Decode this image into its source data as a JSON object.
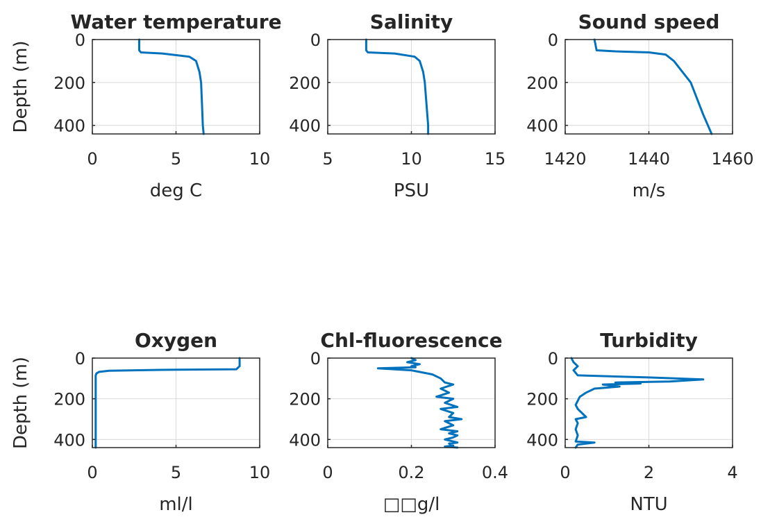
{
  "chart_data": [
    {
      "type": "line",
      "title": "Water temperature",
      "xlabel": "deg C",
      "ylabel": "Depth (m)",
      "xlim": [
        0,
        10
      ],
      "ylim": [
        0,
        440
      ],
      "y_reversed": true,
      "grid": true,
      "xticks": [
        "0",
        "5",
        "10"
      ],
      "yticks": [
        "0",
        "200",
        "400"
      ],
      "series": [
        {
          "x": [
            2.8,
            2.8,
            2.9,
            4.2,
            5.8,
            6.2,
            6.4,
            6.5,
            6.55,
            6.6,
            6.65
          ],
          "y": [
            0,
            50,
            60,
            65,
            80,
            100,
            150,
            200,
            300,
            400,
            440
          ]
        }
      ]
    },
    {
      "type": "line",
      "title": "Salinity",
      "xlabel": "PSU",
      "ylabel": "",
      "xlim": [
        5,
        15
      ],
      "ylim": [
        0,
        440
      ],
      "y_reversed": true,
      "grid": true,
      "xticks": [
        "5",
        "10",
        "15"
      ],
      "yticks": [
        "0",
        "200",
        "400"
      ],
      "series": [
        {
          "x": [
            7.3,
            7.3,
            7.4,
            9.0,
            10.2,
            10.5,
            10.7,
            10.8,
            10.9,
            11.0,
            11.0
          ],
          "y": [
            0,
            50,
            60,
            65,
            80,
            100,
            150,
            200,
            300,
            400,
            440
          ]
        }
      ]
    },
    {
      "type": "line",
      "title": "Sound speed",
      "xlabel": "m/s",
      "ylabel": "",
      "xlim": [
        1420,
        1460
      ],
      "ylim": [
        0,
        440
      ],
      "y_reversed": true,
      "grid": true,
      "xticks": [
        "1420",
        "1440",
        "1460"
      ],
      "yticks": [
        "0",
        "200",
        "400"
      ],
      "series": [
        {
          "x": [
            1427,
            1427.5,
            1432,
            1440,
            1444,
            1446,
            1448,
            1450,
            1453,
            1455
          ],
          "y": [
            0,
            50,
            55,
            60,
            70,
            100,
            150,
            200,
            350,
            440
          ]
        }
      ]
    },
    {
      "type": "line",
      "title": "Oxygen",
      "xlabel": "ml/l",
      "ylabel": "Depth (m)",
      "xlim": [
        0,
        10
      ],
      "ylim": [
        0,
        440
      ],
      "y_reversed": true,
      "grid": true,
      "xticks": [
        "0",
        "5",
        "10"
      ],
      "yticks": [
        "0",
        "200",
        "400"
      ],
      "series": [
        {
          "x": [
            8.8,
            8.8,
            8.6,
            4.0,
            1.0,
            0.4,
            0.25,
            0.2,
            0.2,
            0.2,
            0.2
          ],
          "y": [
            0,
            40,
            55,
            58,
            62,
            68,
            75,
            85,
            150,
            300,
            440
          ]
        }
      ]
    },
    {
      "type": "line",
      "title": "Chl-fluorescence",
      "xlabel": "□□g/l",
      "ylabel": "",
      "xlim": [
        0,
        0.4
      ],
      "ylim": [
        0,
        440
      ],
      "y_reversed": true,
      "grid": true,
      "xticks": [
        "0",
        "0.2",
        "0.4"
      ],
      "yticks": [
        "0",
        "200",
        "400"
      ],
      "series": [
        {
          "x": [
            0.2,
            0.21,
            0.19,
            0.22,
            0.2,
            0.21,
            0.12,
            0.2,
            0.25,
            0.27,
            0.28,
            0.3,
            0.27,
            0.29,
            0.26,
            0.3,
            0.28,
            0.31,
            0.27,
            0.3,
            0.29,
            0.32,
            0.28,
            0.3,
            0.27,
            0.31,
            0.29,
            0.31,
            0.3,
            0.28,
            0.3,
            0.31,
            0.29,
            0.3,
            0.28,
            0.31
          ],
          "y": [
            0,
            10,
            20,
            30,
            40,
            45,
            50,
            60,
            80,
            100,
            120,
            130,
            150,
            170,
            190,
            200,
            220,
            240,
            250,
            270,
            290,
            300,
            310,
            330,
            350,
            360,
            370,
            380,
            390,
            400,
            410,
            415,
            420,
            430,
            435,
            440
          ]
        }
      ]
    },
    {
      "type": "line",
      "title": "Turbidity",
      "xlabel": "NTU",
      "ylabel": "",
      "xlim": [
        0,
        4
      ],
      "ylim": [
        0,
        440
      ],
      "y_reversed": true,
      "grid": true,
      "xticks": [
        "0",
        "2",
        "4"
      ],
      "yticks": [
        "0",
        "200",
        "400"
      ],
      "series": [
        {
          "x": [
            0.15,
            0.2,
            0.3,
            0.2,
            0.3,
            2.0,
            3.3,
            2.5,
            1.2,
            1.8,
            0.9,
            1.3,
            0.7,
            0.5,
            0.35,
            0.3,
            0.25,
            0.3,
            0.5,
            0.25,
            0.3,
            0.25,
            0.3,
            0.25,
            0.7,
            0.3,
            0.25
          ],
          "y": [
            0,
            20,
            40,
            60,
            85,
            95,
            105,
            115,
            120,
            125,
            130,
            140,
            150,
            170,
            190,
            210,
            230,
            250,
            290,
            300,
            320,
            350,
            380,
            410,
            415,
            425,
            440
          ]
        }
      ]
    }
  ]
}
